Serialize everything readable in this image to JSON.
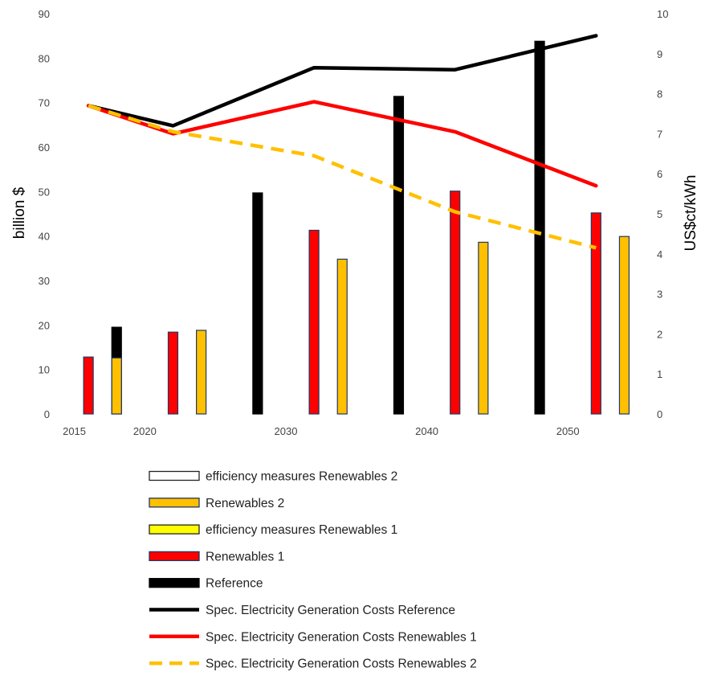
{
  "chart_data": {
    "type": "bar",
    "x": [
      2015,
      2020,
      2030,
      2040,
      2050
    ],
    "xticks": [
      "2015",
      "2020",
      "2030",
      "2040",
      "2050"
    ],
    "xlim": [
      2014,
      2055
    ],
    "ylabel": "billion $",
    "ylim": [
      0,
      90
    ],
    "yticks": [
      "0",
      "10",
      "20",
      "30",
      "40",
      "50",
      "60",
      "70",
      "80",
      "90"
    ],
    "y2label": "US$ct/kWh",
    "y2lim": [
      0,
      10
    ],
    "y2ticks": [
      "0",
      "1",
      "2",
      "3",
      "4",
      "5",
      "6",
      "7",
      "8",
      "9",
      "10"
    ],
    "legend_position": "bottom",
    "colors": {
      "reference": "#000000",
      "renewables1": "#ff0000",
      "renewables2": "#ffc000",
      "efficiency1": "#ffff00",
      "efficiency2": "#ffffff",
      "bar_outline": "#1f3864"
    },
    "bar_series": [
      {
        "key": "reference",
        "name": "Reference",
        "color": "#000000",
        "points": [
          {
            "x": 2018,
            "y": 19.5
          },
          {
            "x": 2028,
            "y": 49.7
          },
          {
            "x": 2038,
            "y": 71.4
          },
          {
            "x": 2048,
            "y": 83.8
          }
        ]
      },
      {
        "key": "renewables1",
        "name": "Renewables 1",
        "color": "#ff0000",
        "points": [
          {
            "x": 2016,
            "y": 12.8
          },
          {
            "x": 2022,
            "y": 18.4
          },
          {
            "x": 2032,
            "y": 41.3
          },
          {
            "x": 2042,
            "y": 50.1
          },
          {
            "x": 2052,
            "y": 45.2
          }
        ]
      },
      {
        "key": "renewables2",
        "name": "Renewables 2",
        "color": "#ffc000",
        "points": [
          {
            "x": 2018,
            "y": 12.6
          },
          {
            "x": 2024,
            "y": 18.8
          },
          {
            "x": 2034,
            "y": 34.8
          },
          {
            "x": 2044,
            "y": 38.6
          },
          {
            "x": 2054,
            "y": 39.9
          }
        ]
      }
    ],
    "line_series": [
      {
        "key": "costs_reference",
        "name": "Spec. Electricity Generation Costs   Reference",
        "color": "#000000",
        "dashed": false,
        "points": [
          {
            "x": 2016,
            "y": 7.7
          },
          {
            "x": 2022,
            "y": 7.2
          },
          {
            "x": 2032,
            "y": 8.65
          },
          {
            "x": 2042,
            "y": 8.6
          },
          {
            "x": 2052,
            "y": 9.45
          }
        ]
      },
      {
        "key": "costs_renewables1",
        "name": "Spec. Electricity Generation Costs   Renewables 1",
        "color": "#ff0000",
        "dashed": false,
        "points": [
          {
            "x": 2016,
            "y": 7.7
          },
          {
            "x": 2022,
            "y": 7.0
          },
          {
            "x": 2032,
            "y": 7.8
          },
          {
            "x": 2042,
            "y": 7.05
          },
          {
            "x": 2052,
            "y": 5.7
          }
        ]
      },
      {
        "key": "costs_renewables2",
        "name": "Spec. Electricity Generation Costs   Renewables 2",
        "color": "#ffc000",
        "dashed": true,
        "points": [
          {
            "x": 2016,
            "y": 7.7
          },
          {
            "x": 2022,
            "y": 7.05
          },
          {
            "x": 2032,
            "y": 6.45
          },
          {
            "x": 2042,
            "y": 5.05
          },
          {
            "x": 2052,
            "y": 4.15
          }
        ]
      }
    ],
    "legend": [
      {
        "label": "efficiency measures  Renewables 2",
        "kind": "box",
        "fill": "#ffffff",
        "stroke": "#222222"
      },
      {
        "label": "Renewables 2",
        "kind": "box",
        "fill": "#ffc000",
        "stroke": "#1f3864"
      },
      {
        "label": "efficiency measures  Renewables 1",
        "kind": "box",
        "fill": "#ffff00",
        "stroke": "#222222"
      },
      {
        "label": "Renewables 1",
        "kind": "box",
        "fill": "#ff0000",
        "stroke": "#1f3864"
      },
      {
        "label": "Reference",
        "kind": "box",
        "fill": "#000000",
        "stroke": "#000000"
      },
      {
        "label": "Spec. Electricity Generation Costs   Reference",
        "kind": "line",
        "stroke": "#000000",
        "dashed": false
      },
      {
        "label": "Spec. Electricity Generation Costs   Renewables 1",
        "kind": "line",
        "stroke": "#ff0000",
        "dashed": false
      },
      {
        "label": "Spec. Electricity Generation Costs   Renewables 2",
        "kind": "line",
        "stroke": "#ffc000",
        "dashed": true
      }
    ]
  }
}
